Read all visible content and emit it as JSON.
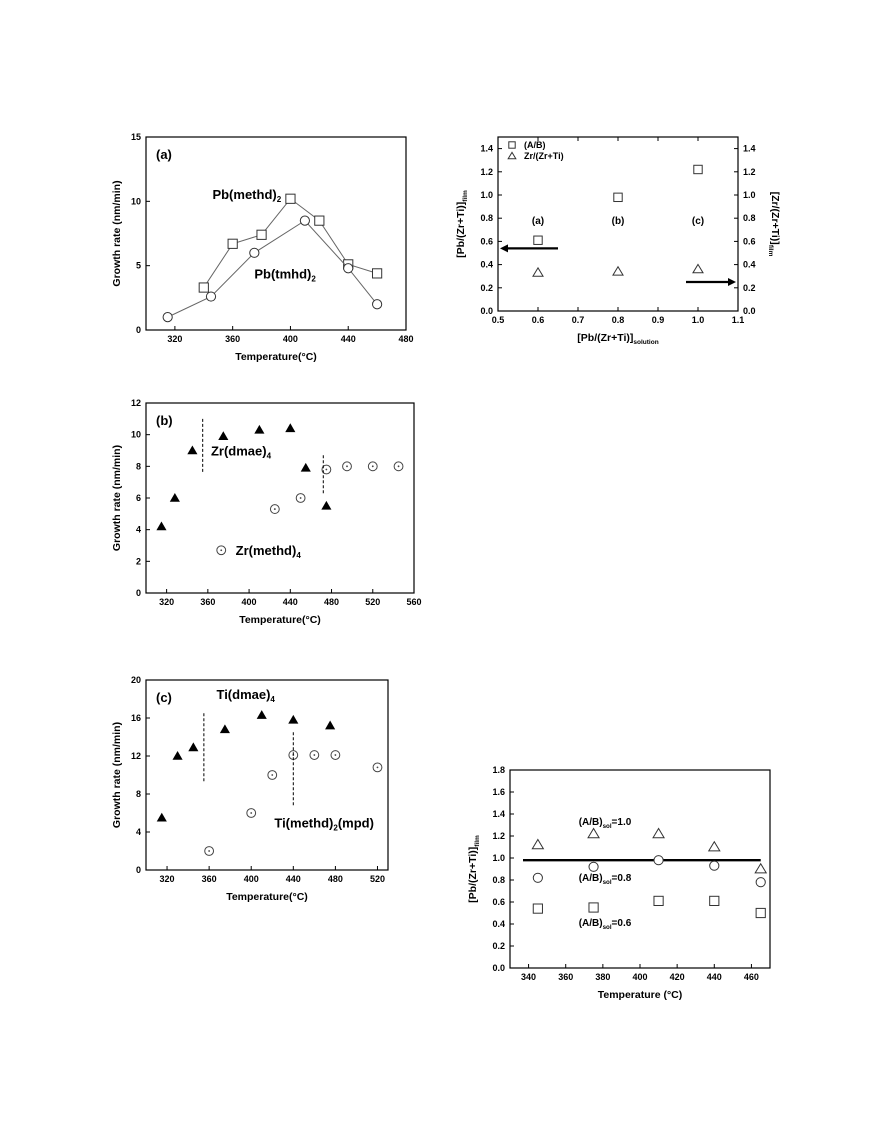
{
  "chart_data": [
    {
      "type": "line",
      "panel_label": "(a)",
      "xlabel": "Temperature(°C)",
      "ylabel": "Growth rate (nm/min)",
      "xlim": [
        300,
        480
      ],
      "ylim": [
        0,
        15
      ],
      "xticks": [
        320,
        360,
        400,
        440,
        480
      ],
      "yticks": [
        0,
        5,
        10,
        15
      ],
      "series": [
        {
          "name": "Pb(methd)",
          "name_sub": "2",
          "marker": "square",
          "x": [
            340,
            360,
            380,
            400,
            420,
            440,
            460
          ],
          "y": [
            3.3,
            6.7,
            7.4,
            10.2,
            8.5,
            5.1,
            4.4
          ]
        },
        {
          "name": "Pb(tmhd)",
          "name_sub": "2",
          "marker": "circle",
          "x": [
            315,
            345,
            375,
            410,
            440,
            460
          ],
          "y": [
            1.0,
            2.6,
            6.0,
            8.5,
            4.8,
            2.0
          ]
        }
      ],
      "grid": false
    },
    {
      "type": "scatter",
      "xlabel": "[Pb/(Zr+Ti)]",
      "xlabel_sub": "solution",
      "ylabel": "[Pb/(Zr+Ti)]",
      "ylabel_sub": "film",
      "y2label": "[Zr/(Zr+Ti)]",
      "y2label_sub": "film",
      "xlim": [
        0.5,
        1.1
      ],
      "ylim": [
        0.0,
        1.5
      ],
      "xticks": [
        0.5,
        0.6,
        0.7,
        0.8,
        0.9,
        1.0,
        1.1
      ],
      "yticks": [
        0.0,
        0.2,
        0.4,
        0.6,
        0.8,
        1.0,
        1.2,
        1.4
      ],
      "legend_position": "top-left",
      "series": [
        {
          "name": "(A/B)",
          "marker": "square",
          "x": [
            0.6,
            0.8,
            1.0
          ],
          "y": [
            0.61,
            0.98,
            1.22
          ]
        },
        {
          "name": "Zr/(Zr+Ti)",
          "marker": "triangle",
          "x": [
            0.6,
            0.8,
            1.0
          ],
          "y": [
            0.33,
            0.34,
            0.36
          ]
        }
      ],
      "annotations": [
        "(a)",
        "(b)",
        "(c)"
      ],
      "grid": false
    },
    {
      "type": "scatter",
      "panel_label": "(b)",
      "xlabel": "Temperature(°C)",
      "ylabel": "Growth rate (nm/min)",
      "xlim": [
        300,
        560
      ],
      "ylim": [
        0,
        12
      ],
      "xticks": [
        320,
        360,
        400,
        440,
        480,
        520,
        560
      ],
      "yticks": [
        0,
        2,
        4,
        6,
        8,
        10,
        12
      ],
      "series": [
        {
          "name": "Zr(dmae)",
          "name_sub": "4",
          "marker": "triangle-filled",
          "x": [
            315,
            328,
            345,
            375,
            410,
            440,
            455,
            475
          ],
          "y": [
            4.2,
            6.0,
            9.0,
            9.9,
            10.3,
            10.4,
            7.9,
            5.5
          ]
        },
        {
          "name": "Zr(methd)",
          "name_sub": "4",
          "marker": "circle-dot",
          "x": [
            425,
            450,
            475,
            495,
            520,
            545
          ],
          "y": [
            5.3,
            6.0,
            7.8,
            8.0,
            8.0,
            8.0
          ]
        }
      ],
      "grid": false
    },
    {
      "type": "scatter",
      "panel_label": "(c)",
      "xlabel": "Temperature(°C)",
      "ylabel": "Growth rate (nm/min)",
      "xlim": [
        300,
        530
      ],
      "ylim": [
        0,
        20
      ],
      "xticks": [
        320,
        360,
        400,
        440,
        480,
        520
      ],
      "yticks": [
        0,
        4,
        8,
        12,
        16,
        20
      ],
      "series": [
        {
          "name": "Ti(dmae)",
          "name_sub": "4",
          "marker": "triangle-filled",
          "x": [
            315,
            330,
            345,
            375,
            410,
            440,
            475
          ],
          "y": [
            5.5,
            12.0,
            12.9,
            14.8,
            16.3,
            15.8,
            15.2
          ]
        },
        {
          "name": "Ti(methd)",
          "name_sub": "2",
          "name_suffix": "(mpd)",
          "marker": "circle-dot",
          "x": [
            360,
            400,
            420,
            440,
            460,
            480,
            520
          ],
          "y": [
            2.0,
            6.0,
            10.0,
            12.1,
            12.1,
            12.1,
            10.8
          ]
        }
      ],
      "grid": false
    },
    {
      "type": "scatter",
      "xlabel": "Temperature (°C)",
      "ylabel": "[Pb/(Zr+Ti)]",
      "ylabel_sub": "film",
      "xlim": [
        330,
        470
      ],
      "ylim": [
        0.0,
        1.8
      ],
      "xticks": [
        340,
        360,
        380,
        400,
        420,
        440,
        460
      ],
      "yticks": [
        0.0,
        0.2,
        0.4,
        0.6,
        0.8,
        1.0,
        1.2,
        1.4,
        1.6,
        1.8
      ],
      "reference_line_y": 0.98,
      "series": [
        {
          "name": "(A/B)",
          "name_sub": "sol",
          "name_suffix": "=1.0",
          "marker": "triangle",
          "x": [
            345,
            375,
            410,
            440,
            465
          ],
          "y": [
            1.12,
            1.22,
            1.22,
            1.1,
            0.9
          ]
        },
        {
          "name": "(A/B)",
          "name_sub": "sol",
          "name_suffix": "=0.8",
          "marker": "circle",
          "x": [
            345,
            375,
            410,
            440,
            465
          ],
          "y": [
            0.82,
            0.92,
            0.98,
            0.93,
            0.78
          ]
        },
        {
          "name": "(A/B)",
          "name_sub": "sol",
          "name_suffix": "=0.6",
          "marker": "square",
          "x": [
            345,
            375,
            410,
            440,
            465
          ],
          "y": [
            0.54,
            0.55,
            0.61,
            0.61,
            0.5
          ]
        }
      ],
      "grid": false
    }
  ]
}
